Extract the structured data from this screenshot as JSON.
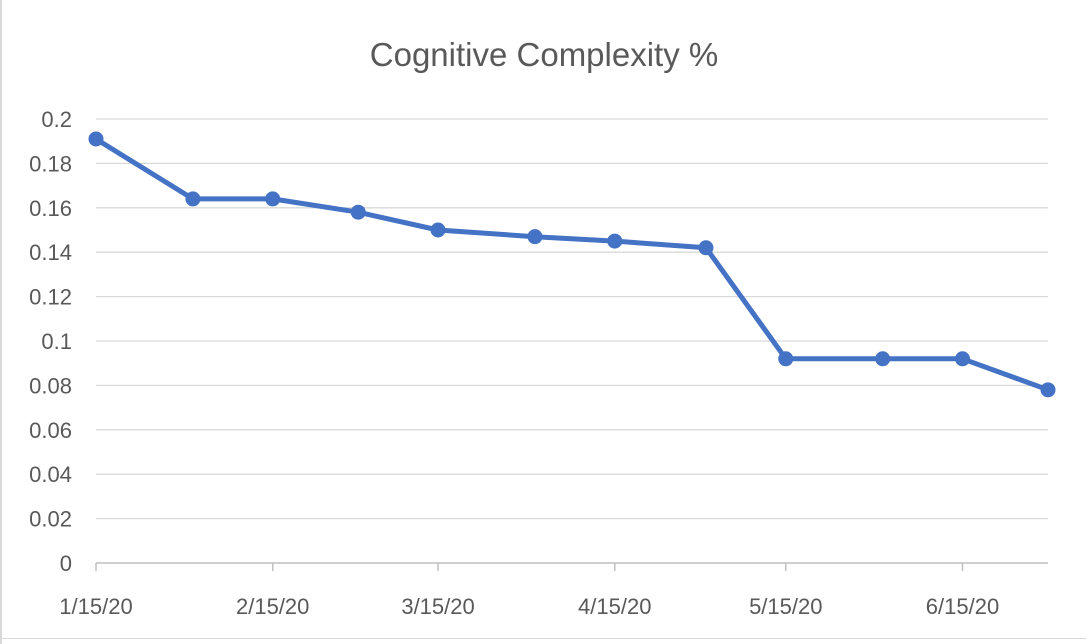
{
  "chart_data": {
    "type": "line",
    "title": "Cognitive Complexity %",
    "xlabel": "",
    "ylabel": "",
    "ylim": [
      0,
      0.2
    ],
    "y_ticks": [
      0,
      0.02,
      0.04,
      0.06,
      0.08,
      0.1,
      0.12,
      0.14,
      0.16,
      0.18,
      0.2
    ],
    "y_tick_labels": [
      "0",
      "0.02",
      "0.04",
      "0.06",
      "0.08",
      "0.1",
      "0.12",
      "0.14",
      "0.16",
      "0.18",
      "0.2"
    ],
    "xlim": [
      "2020-01-15",
      "2020-06-30"
    ],
    "x_ticks": [
      "2020-01-15",
      "2020-02-15",
      "2020-03-15",
      "2020-04-15",
      "2020-05-15",
      "2020-06-15"
    ],
    "x_tick_labels": [
      "1/15/20",
      "2/15/20",
      "3/15/20",
      "4/15/20",
      "5/15/20",
      "6/15/20"
    ],
    "grid": "horizontal",
    "legend": "none",
    "series": [
      {
        "color": "#4472c4",
        "x": [
          "2020-01-15",
          "2020-02-01",
          "2020-02-15",
          "2020-03-01",
          "2020-03-15",
          "2020-04-01",
          "2020-04-15",
          "2020-05-01",
          "2020-05-15",
          "2020-06-01",
          "2020-06-15",
          "2020-06-30"
        ],
        "values": [
          0.191,
          0.164,
          0.164,
          0.158,
          0.15,
          0.147,
          0.145,
          0.142,
          0.092,
          0.092,
          0.092,
          0.078
        ]
      }
    ]
  }
}
